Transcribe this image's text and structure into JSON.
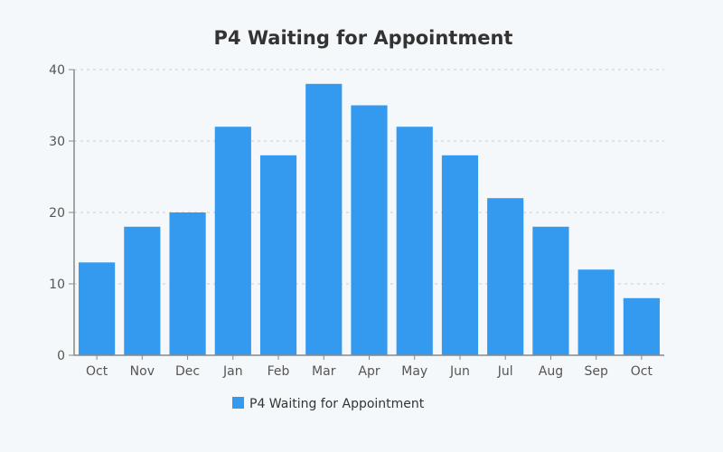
{
  "chart_data": {
    "type": "bar",
    "title": "P4 Waiting for Appointment",
    "categories": [
      "Oct",
      "Nov",
      "Dec",
      "Jan",
      "Feb",
      "Mar",
      "Apr",
      "May",
      "Jun",
      "Jul",
      "Aug",
      "Sep",
      "Oct"
    ],
    "series": [
      {
        "name": "P4 Waiting for Appointment",
        "values": [
          13,
          18,
          20,
          32,
          28,
          38,
          35,
          32,
          28,
          22,
          18,
          12,
          8
        ],
        "color": "#339af0"
      }
    ],
    "xlabel": "",
    "ylabel": "",
    "ylim": [
      0,
      40
    ],
    "yticks": [
      0,
      10,
      20,
      30,
      40
    ],
    "grid": true,
    "legend_position": "bottom"
  }
}
